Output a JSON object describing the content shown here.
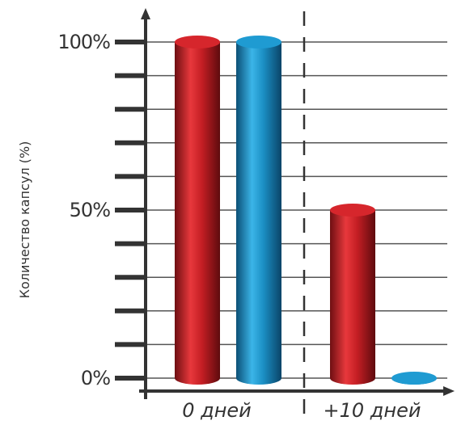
{
  "chart_data": {
    "type": "bar",
    "title": "",
    "xlabel": "",
    "ylabel": "Количество капсул (%)",
    "categories": [
      "0 дней",
      "+10 дней"
    ],
    "series": [
      {
        "color": "#c41e24",
        "values": [
          100,
          50
        ]
      },
      {
        "color": "#1b8fc4",
        "values": [
          100,
          0
        ]
      }
    ],
    "ylim": [
      0,
      100
    ],
    "yticks": [
      {
        "value": 0,
        "label": "0%"
      },
      {
        "value": 50,
        "label": "50%"
      },
      {
        "value": 100,
        "label": "100%"
      }
    ],
    "minor_ticks": 10,
    "grid": true,
    "legend": "none",
    "colors": {
      "axis": "#333333",
      "grid": "#555555",
      "text": "#333333"
    }
  }
}
